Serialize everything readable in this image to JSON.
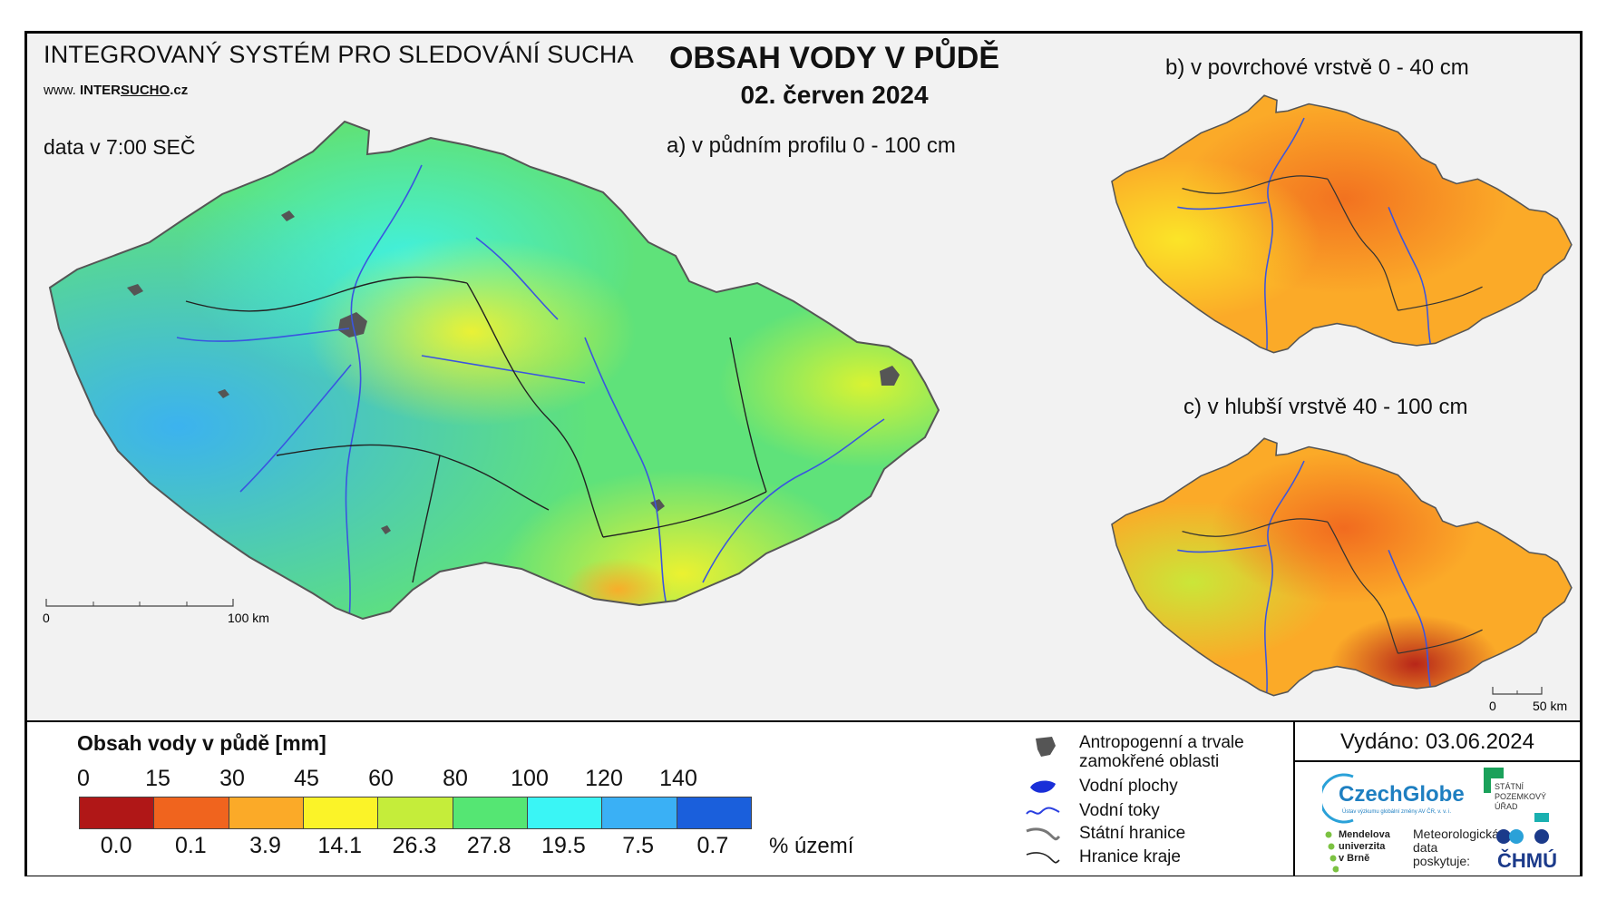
{
  "header": {
    "system_title": "INTEGROVANÝ SYSTÉM PRO SLEDOVÁNÍ SUCHA",
    "website_prefix": "www.",
    "website_name_a": "INTER",
    "website_name_b": "SUCHO",
    "website_suffix": ".cz",
    "data_time": "data v 7:00 SEČ",
    "main_title": "OBSAH VODY V PŮDĚ",
    "date": "02. červen 2024"
  },
  "maps": [
    {
      "label": "a) v půdním profilu 0 - 100 cm",
      "dominant_classes": [
        "60-80",
        "80-100",
        "100-120",
        "45-60"
      ]
    },
    {
      "label": "b) v povrchové vrstvě 0 - 40 cm",
      "dominant_classes": [
        "30-45",
        "45-60",
        "15-30"
      ]
    },
    {
      "label": "c) v hlubší vrstvě 40 - 100 cm",
      "dominant_classes": [
        "15-30",
        "30-45",
        "45-60",
        "60-80",
        "0-15"
      ]
    }
  ],
  "scalebars": {
    "main": {
      "start": "0",
      "end": "100 km"
    },
    "small": {
      "start": "0",
      "end": "50 km"
    }
  },
  "legend": {
    "title": "Obsah vody v půdě  [mm]",
    "ticks": [
      "0",
      "15",
      "30",
      "45",
      "60",
      "80",
      "100",
      "120",
      "140"
    ],
    "colors": [
      "#b01717",
      "#f0641e",
      "#fbaa28",
      "#fbf328",
      "#c5ed3a",
      "#55e673",
      "#3af5f5",
      "#3ab0f5",
      "#1a5fdc"
    ],
    "percentages": [
      "0.0",
      "0.1",
      "3.9",
      "14.1",
      "26.3",
      "27.8",
      "19.5",
      "7.5",
      "0.7"
    ],
    "pct_unit": "% území"
  },
  "symbols": [
    {
      "icon": "urban-area-icon",
      "label_lines": [
        "Antropogenní a trvale",
        "zamokřené oblasti"
      ]
    },
    {
      "icon": "water-body-icon",
      "label_lines": [
        "Vodní plochy"
      ]
    },
    {
      "icon": "river-icon",
      "label_lines": [
        "Vodní toky"
      ]
    },
    {
      "icon": "state-border-icon",
      "label_lines": [
        "Státní hranice"
      ]
    },
    {
      "icon": "region-border-icon",
      "label_lines": [
        "Hranice kraje"
      ]
    }
  ],
  "footer": {
    "issued": "Vydáno: 03.06.2024",
    "logos": {
      "czechglobe": "CzechGlobe",
      "czechglobe_sub": "Ústav výzkumu globální změny AV ČR, v. v. i.",
      "spu_lines": [
        "STÁTNÍ",
        "POZEMKOVÝ",
        "ÚŘAD"
      ],
      "mendel_lines": [
        "Mendelova",
        "univerzita",
        "v Brně"
      ],
      "chmu_lines": [
        "Meteorologická",
        "data",
        "poskytuje:"
      ],
      "chmu_name": "ČHMÚ"
    }
  }
}
